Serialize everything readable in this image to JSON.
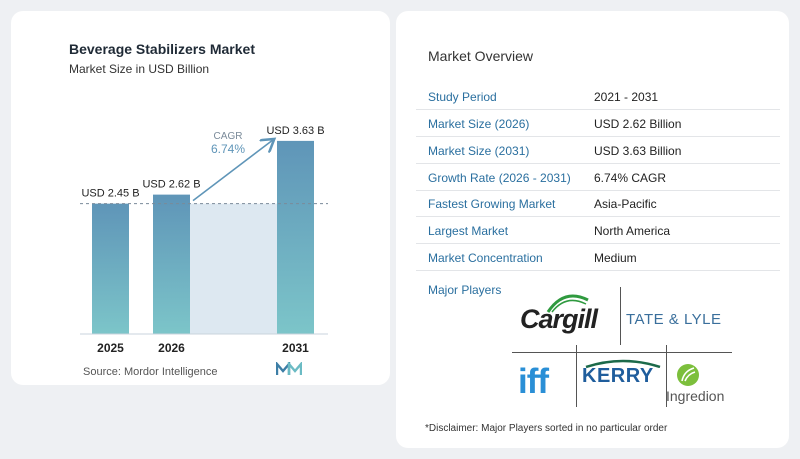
{
  "chart_data": {
    "type": "bar",
    "title": "Beverage Stabilizers Market",
    "subtitle": "Market Size in USD Billion",
    "categories": [
      "2025",
      "2026",
      "2031"
    ],
    "values": [
      2.45,
      2.62,
      3.63
    ],
    "data_labels": [
      "USD 2.45 B",
      "USD 2.62 B",
      "USD 3.63 B"
    ],
    "cagr_label": "CAGR",
    "cagr_value": "6.74%",
    "colors": {
      "bar_top": "#5f95b8",
      "bar_bottom": "#7cc5c9",
      "band": "#dde8f1",
      "arrow": "#5f95b8"
    },
    "grid": false
  },
  "source": "Source: Mordor Intelligence",
  "overview": {
    "title": "Market Overview",
    "rows": [
      {
        "label": "Study Period",
        "value": "2021 - 2031"
      },
      {
        "label": "Market Size (2026)",
        "value": "USD 2.62 Billion"
      },
      {
        "label": "Market Size (2031)",
        "value": "USD 3.63 Billion"
      },
      {
        "label": "Growth Rate (2026 - 2031)",
        "value": "6.74% CAGR"
      },
      {
        "label": "Fastest Growing Market",
        "value": "Asia-Pacific"
      },
      {
        "label": "Largest Market",
        "value": "North America"
      },
      {
        "label": "Market Concentration",
        "value": "Medium"
      }
    ],
    "players_label": "Major Players",
    "players": [
      "Cargill",
      "TATE & LYLE",
      "iff",
      "KERRY",
      "Ingredion"
    ]
  },
  "disclaimer": "*Disclaimer: Major Players sorted in no particular order"
}
